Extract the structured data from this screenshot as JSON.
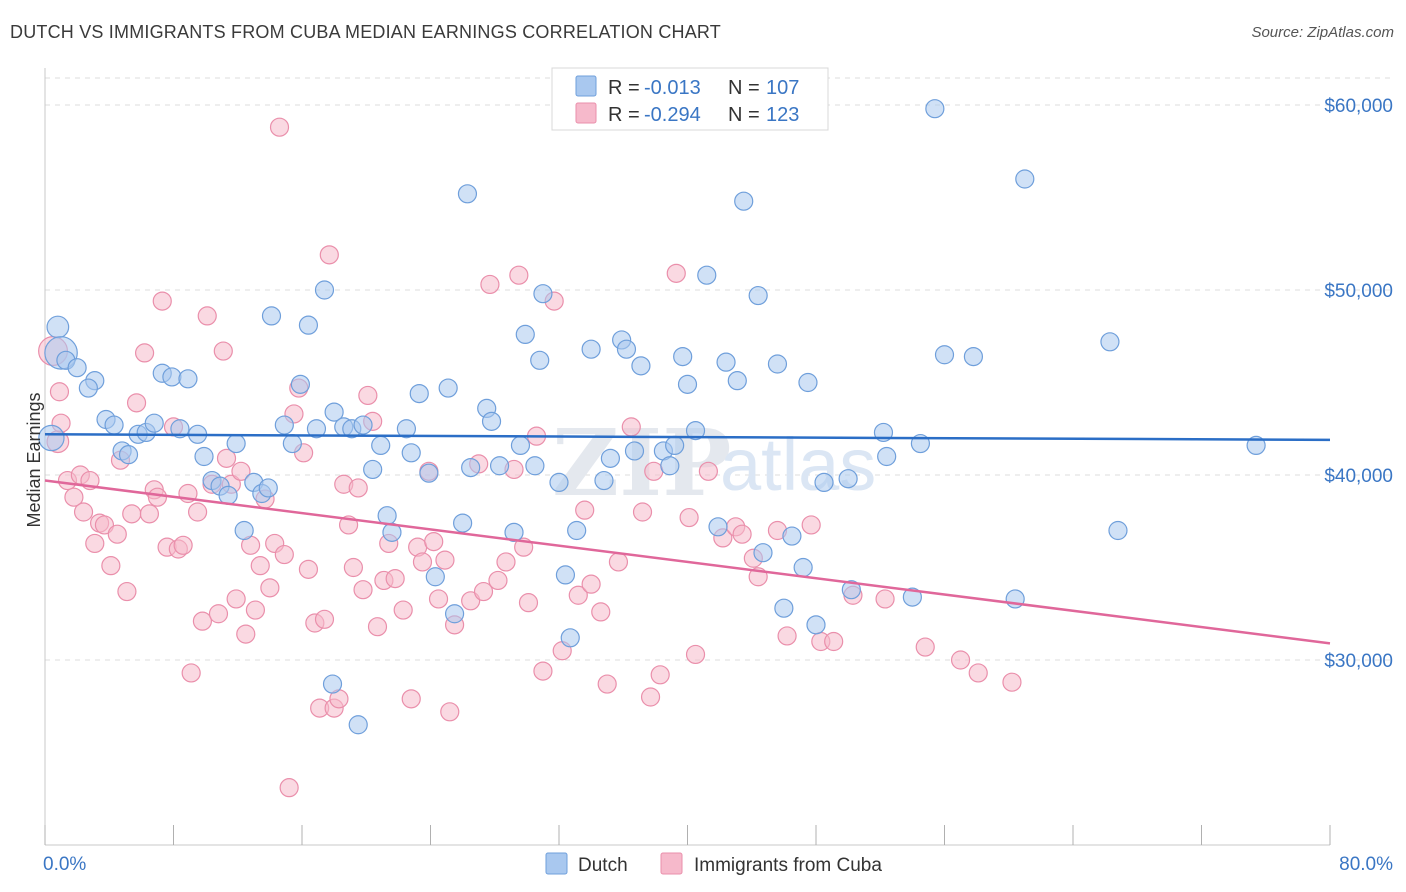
{
  "title": "DUTCH VS IMMIGRANTS FROM CUBA MEDIAN EARNINGS CORRELATION CHART",
  "source": "Source: ZipAtlas.com",
  "watermark": {
    "part1": "ZIP",
    "part2": "atlas"
  },
  "colors": {
    "dutch_fill": "#a9c8ef",
    "dutch_stroke": "#6f9fdb",
    "dutch_line": "#2b6ec6",
    "cuba_fill": "#f6b9cb",
    "cuba_stroke": "#ea8fab",
    "cuba_line": "#e0679a",
    "axis_text": "#3a76c4",
    "grid": "#dedede"
  },
  "legend": {
    "rows": [
      {
        "r_label": "R =",
        "r_value": "-0.013",
        "n_label": "N =",
        "n_value": "107"
      },
      {
        "r_label": "R =",
        "r_value": "-0.294",
        "n_label": "N =",
        "n_value": "123"
      }
    ]
  },
  "bottom_legend": [
    "Dutch",
    "Immigrants from Cuba"
  ],
  "chart_data": {
    "type": "scatter",
    "title": "DUTCH VS IMMIGRANTS FROM CUBA MEDIAN EARNINGS CORRELATION CHART",
    "xlabel": "",
    "ylabel": "Median Earnings",
    "xlim": [
      0,
      80
    ],
    "ylim": [
      20000,
      62000
    ],
    "x_tick_labels": [
      "0.0%",
      "80.0%"
    ],
    "y_ticks": [
      30000,
      40000,
      50000,
      60000
    ],
    "y_tick_labels": [
      "$30,000",
      "$40,000",
      "$50,000",
      "$60,000"
    ],
    "grid": true,
    "legend_placement": "top-center",
    "series": [
      {
        "name": "Dutch",
        "r": -0.013,
        "n": 107,
        "trend": {
          "x": [
            0,
            80
          ],
          "y": [
            42200,
            41900
          ]
        },
        "points": [
          [
            0.4,
            42000,
            14
          ],
          [
            0.8,
            48000,
            12
          ],
          [
            1.0,
            46600,
            18
          ],
          [
            1.3,
            46200,
            10
          ],
          [
            2.0,
            45800,
            10
          ],
          [
            3.1,
            45100,
            10
          ],
          [
            2.7,
            44700,
            10
          ],
          [
            3.8,
            43000,
            10
          ],
          [
            4.3,
            42700,
            10
          ],
          [
            4.8,
            41300,
            10
          ],
          [
            5.2,
            41100,
            10
          ],
          [
            5.8,
            42200,
            10
          ],
          [
            6.3,
            42300,
            10
          ],
          [
            6.8,
            42800,
            10
          ],
          [
            7.3,
            45500,
            10
          ],
          [
            7.9,
            45300,
            10
          ],
          [
            8.4,
            42500,
            10
          ],
          [
            8.9,
            45200,
            10
          ],
          [
            9.5,
            42200,
            10
          ],
          [
            9.9,
            41000,
            10
          ],
          [
            10.4,
            39700,
            10
          ],
          [
            10.9,
            39400,
            10
          ],
          [
            11.4,
            38900,
            10
          ],
          [
            11.9,
            41700,
            10
          ],
          [
            12.4,
            37000,
            10
          ],
          [
            13.0,
            39600,
            10
          ],
          [
            13.5,
            39000,
            10
          ],
          [
            13.9,
            39300,
            10
          ],
          [
            14.1,
            48600,
            10
          ],
          [
            14.9,
            42700,
            10
          ],
          [
            15.4,
            41700,
            10
          ],
          [
            15.9,
            44900,
            10
          ],
          [
            16.4,
            48100,
            10
          ],
          [
            16.9,
            42500,
            10
          ],
          [
            17.4,
            50000,
            10
          ],
          [
            17.9,
            28700,
            10
          ],
          [
            18.0,
            43400,
            10
          ],
          [
            18.6,
            42600,
            10
          ],
          [
            19.1,
            42500,
            10
          ],
          [
            19.5,
            26500,
            10
          ],
          [
            19.8,
            42700,
            10
          ],
          [
            20.4,
            40300,
            10
          ],
          [
            20.9,
            41600,
            10
          ],
          [
            21.3,
            37800,
            10
          ],
          [
            21.6,
            36900,
            10
          ],
          [
            22.5,
            42500,
            10
          ],
          [
            22.8,
            41200,
            10
          ],
          [
            23.3,
            44400,
            10
          ],
          [
            23.9,
            40100,
            10
          ],
          [
            24.3,
            34500,
            10
          ],
          [
            25.1,
            44700,
            10
          ],
          [
            25.5,
            32500,
            10
          ],
          [
            26.0,
            37400,
            10
          ],
          [
            26.3,
            55200,
            10
          ],
          [
            26.5,
            40400,
            10
          ],
          [
            27.5,
            43600,
            10
          ],
          [
            27.8,
            42900,
            10
          ],
          [
            28.3,
            40500,
            10
          ],
          [
            29.2,
            36900,
            10
          ],
          [
            29.6,
            41600,
            10
          ],
          [
            29.9,
            47600,
            10
          ],
          [
            30.5,
            40500,
            10
          ],
          [
            30.8,
            46200,
            10
          ],
          [
            31.0,
            49800,
            10
          ],
          [
            32.0,
            39600,
            10
          ],
          [
            32.4,
            34600,
            10
          ],
          [
            32.7,
            31200,
            10
          ],
          [
            33.1,
            37000,
            10
          ],
          [
            34.0,
            46800,
            10
          ],
          [
            34.8,
            39700,
            10
          ],
          [
            35.2,
            40900,
            10
          ],
          [
            35.9,
            47300,
            10
          ],
          [
            36.2,
            46800,
            10
          ],
          [
            36.7,
            41300,
            10
          ],
          [
            37.1,
            45900,
            10
          ],
          [
            38.5,
            41300,
            10
          ],
          [
            38.9,
            40500,
            10
          ],
          [
            39.2,
            41600,
            10
          ],
          [
            39.7,
            46400,
            10
          ],
          [
            40.0,
            44900,
            10
          ],
          [
            40.5,
            42400,
            10
          ],
          [
            41.2,
            50800,
            10
          ],
          [
            41.9,
            37200,
            10
          ],
          [
            42.4,
            46100,
            10
          ],
          [
            43.1,
            45100,
            10
          ],
          [
            43.5,
            54800,
            10
          ],
          [
            44.4,
            49700,
            10
          ],
          [
            44.7,
            35800,
            10
          ],
          [
            45.6,
            46000,
            10
          ],
          [
            46.0,
            32800,
            10
          ],
          [
            46.5,
            36700,
            10
          ],
          [
            47.2,
            35000,
            10
          ],
          [
            47.5,
            45000,
            10
          ],
          [
            48.0,
            31900,
            10
          ],
          [
            48.5,
            39600,
            10
          ],
          [
            50.0,
            39800,
            10
          ],
          [
            50.2,
            33800,
            10
          ],
          [
            52.2,
            42300,
            10
          ],
          [
            52.4,
            41000,
            10
          ],
          [
            54.0,
            33400,
            10
          ],
          [
            54.5,
            41700,
            10
          ],
          [
            56.0,
            46500,
            10
          ],
          [
            57.8,
            46400,
            10
          ],
          [
            60.4,
            33300,
            10
          ],
          [
            61.0,
            56000,
            10
          ],
          [
            66.3,
            47200,
            10
          ],
          [
            66.8,
            37000,
            10
          ],
          [
            75.4,
            41600,
            10
          ],
          [
            55.4,
            59800,
            10
          ]
        ]
      },
      {
        "name": "Immigrants from Cuba",
        "r": -0.294,
        "n": 123,
        "trend": {
          "x": [
            0,
            80
          ],
          "y": [
            39700,
            30900
          ]
        },
        "points": [
          [
            0.5,
            46700,
            16
          ],
          [
            0.8,
            41800,
            12
          ],
          [
            1.0,
            42800,
            10
          ],
          [
            0.9,
            44500,
            10
          ],
          [
            1.4,
            39700,
            10
          ],
          [
            1.8,
            38800,
            10
          ],
          [
            2.2,
            40000,
            10
          ],
          [
            2.4,
            38000,
            10
          ],
          [
            2.8,
            39700,
            10
          ],
          [
            3.1,
            36300,
            10
          ],
          [
            3.4,
            37400,
            10
          ],
          [
            3.7,
            37300,
            10
          ],
          [
            4.1,
            35100,
            10
          ],
          [
            4.5,
            36800,
            10
          ],
          [
            4.7,
            40800,
            10
          ],
          [
            5.1,
            33700,
            10
          ],
          [
            5.4,
            37900,
            10
          ],
          [
            5.7,
            43900,
            10
          ],
          [
            6.2,
            46600,
            10
          ],
          [
            6.5,
            37900,
            10
          ],
          [
            6.8,
            39200,
            10
          ],
          [
            7.0,
            38800,
            10
          ],
          [
            7.3,
            49400,
            10
          ],
          [
            7.6,
            36100,
            10
          ],
          [
            8.0,
            42600,
            10
          ],
          [
            8.3,
            36000,
            10
          ],
          [
            8.6,
            36200,
            10
          ],
          [
            8.9,
            39000,
            10
          ],
          [
            9.1,
            29300,
            10
          ],
          [
            9.5,
            38000,
            10
          ],
          [
            9.8,
            32100,
            10
          ],
          [
            10.1,
            48600,
            10
          ],
          [
            10.4,
            39500,
            10
          ],
          [
            10.8,
            32500,
            10
          ],
          [
            11.1,
            46700,
            10
          ],
          [
            11.3,
            40900,
            10
          ],
          [
            11.6,
            39500,
            10
          ],
          [
            11.9,
            33300,
            10
          ],
          [
            12.2,
            40200,
            10
          ],
          [
            12.5,
            31400,
            10
          ],
          [
            12.8,
            36200,
            10
          ],
          [
            13.1,
            32700,
            10
          ],
          [
            13.4,
            35100,
            10
          ],
          [
            13.7,
            38700,
            10
          ],
          [
            14.0,
            33900,
            10
          ],
          [
            14.3,
            36300,
            10
          ],
          [
            14.6,
            58800,
            10
          ],
          [
            14.9,
            35700,
            10
          ],
          [
            15.2,
            23100,
            10
          ],
          [
            15.5,
            43300,
            10
          ],
          [
            15.8,
            44700,
            10
          ],
          [
            16.1,
            41200,
            10
          ],
          [
            16.4,
            34900,
            10
          ],
          [
            16.8,
            32000,
            10
          ],
          [
            17.1,
            27400,
            10
          ],
          [
            17.4,
            32200,
            10
          ],
          [
            17.7,
            51900,
            10
          ],
          [
            18.0,
            27400,
            10
          ],
          [
            18.3,
            27900,
            10
          ],
          [
            18.6,
            39500,
            10
          ],
          [
            18.9,
            37300,
            10
          ],
          [
            19.2,
            35000,
            10
          ],
          [
            19.5,
            39300,
            10
          ],
          [
            19.8,
            33800,
            10
          ],
          [
            20.1,
            44300,
            10
          ],
          [
            20.4,
            42900,
            10
          ],
          [
            20.7,
            31800,
            10
          ],
          [
            21.1,
            34300,
            10
          ],
          [
            21.4,
            36300,
            10
          ],
          [
            21.8,
            34400,
            10
          ],
          [
            22.3,
            32700,
            10
          ],
          [
            22.8,
            27900,
            10
          ],
          [
            23.2,
            36100,
            10
          ],
          [
            23.5,
            35300,
            10
          ],
          [
            23.9,
            40200,
            10
          ],
          [
            24.2,
            36400,
            10
          ],
          [
            24.5,
            33300,
            10
          ],
          [
            24.9,
            35400,
            10
          ],
          [
            25.2,
            27200,
            10
          ],
          [
            25.5,
            31900,
            10
          ],
          [
            26.5,
            33200,
            10
          ],
          [
            27.0,
            40600,
            10
          ],
          [
            27.3,
            33700,
            10
          ],
          [
            27.7,
            50300,
            10
          ],
          [
            28.2,
            34300,
            10
          ],
          [
            28.7,
            35300,
            10
          ],
          [
            29.2,
            40300,
            10
          ],
          [
            29.5,
            50800,
            10
          ],
          [
            29.8,
            36100,
            10
          ],
          [
            30.1,
            33100,
            10
          ],
          [
            30.6,
            42100,
            10
          ],
          [
            31.0,
            29400,
            10
          ],
          [
            31.7,
            49400,
            10
          ],
          [
            32.2,
            30500,
            10
          ],
          [
            33.2,
            33500,
            10
          ],
          [
            33.6,
            38100,
            10
          ],
          [
            34.0,
            34100,
            10
          ],
          [
            34.6,
            32600,
            10
          ],
          [
            35.0,
            28700,
            10
          ],
          [
            35.7,
            35300,
            10
          ],
          [
            36.5,
            42600,
            10
          ],
          [
            37.2,
            38000,
            10
          ],
          [
            37.7,
            28000,
            10
          ],
          [
            37.9,
            40200,
            10
          ],
          [
            38.3,
            29200,
            10
          ],
          [
            39.3,
            50900,
            10
          ],
          [
            40.1,
            37700,
            10
          ],
          [
            40.5,
            30300,
            10
          ],
          [
            41.3,
            40200,
            10
          ],
          [
            42.2,
            36600,
            10
          ],
          [
            43.0,
            37200,
            10
          ],
          [
            43.4,
            36800,
            10
          ],
          [
            44.1,
            35500,
            10
          ],
          [
            44.4,
            34500,
            10
          ],
          [
            45.6,
            37000,
            10
          ],
          [
            46.2,
            31300,
            10
          ],
          [
            47.7,
            37300,
            10
          ],
          [
            48.3,
            31000,
            10
          ],
          [
            49.1,
            31000,
            10
          ],
          [
            50.3,
            33500,
            10
          ],
          [
            52.3,
            33300,
            10
          ],
          [
            54.8,
            30700,
            10
          ],
          [
            57.0,
            30000,
            10
          ],
          [
            58.1,
            29300,
            10
          ],
          [
            60.2,
            28800,
            10
          ]
        ]
      }
    ]
  }
}
